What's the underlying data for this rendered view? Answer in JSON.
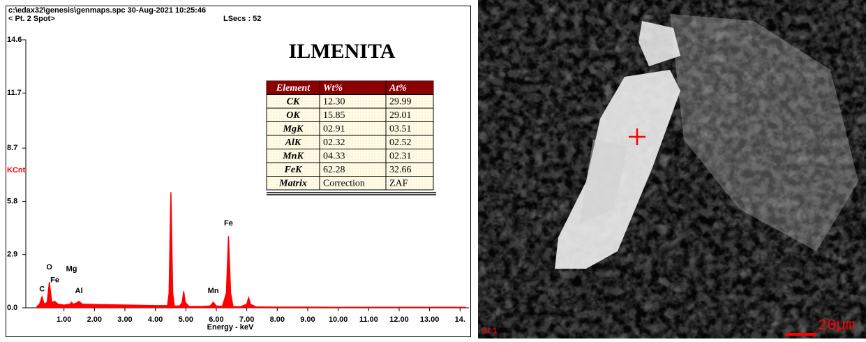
{
  "chart_data": {
    "type": "line",
    "header": [
      "c:\\edax32\\genesis\\genmaps.spc  30-Aug-2021 10:25:46",
      "< Pt. 2 Spot>",
      "LSecs : 52"
    ],
    "title": "ILMENITA",
    "ylabel": "KCnt",
    "xlabel": "Energy - keV",
    "color": "#ff0000",
    "xlim": [
      0,
      14.2
    ],
    "ylim": [
      0,
      14.6
    ],
    "xticks": [
      {
        "value": 1,
        "label": "1.00"
      },
      {
        "value": 2,
        "label": "2.00"
      },
      {
        "value": 3,
        "label": "3.00"
      },
      {
        "value": 4,
        "label": "4.00"
      },
      {
        "value": 5,
        "label": "5.00"
      },
      {
        "value": 6,
        "label": "6.00"
      },
      {
        "value": 7,
        "label": "7.00"
      },
      {
        "value": 8,
        "label": "8.00"
      },
      {
        "value": 9,
        "label": "9.00"
      },
      {
        "value": 10,
        "label": "10.00"
      },
      {
        "value": 11,
        "label": "11.00"
      },
      {
        "value": 12,
        "label": "12.00"
      },
      {
        "value": 13,
        "label": "13.00"
      },
      {
        "value": 14,
        "label": "14."
      }
    ],
    "yticks": [
      {
        "value": 0,
        "label": "0.0"
      },
      2.9,
      5.8,
      8.7,
      11.7,
      14.6
    ],
    "x": [
      0.1,
      0.2,
      0.28,
      0.35,
      0.45,
      0.52,
      0.6,
      0.7,
      0.8,
      1.0,
      1.2,
      1.25,
      1.3,
      1.4,
      1.49,
      1.6,
      2.0,
      3.0,
      4.0,
      4.4,
      4.45,
      4.51,
      4.57,
      4.62,
      4.8,
      4.88,
      4.93,
      4.98,
      5.1,
      5.5,
      5.8,
      5.9,
      6.0,
      6.2,
      6.33,
      6.4,
      6.47,
      6.55,
      6.8,
      7.0,
      7.06,
      7.12,
      7.3,
      8.0,
      9.0,
      10.0,
      11.0,
      12.0,
      13.0,
      14.0,
      14.2
    ],
    "values": [
      0.05,
      0.2,
      0.6,
      0.2,
      0.3,
      1.4,
      0.3,
      0.35,
      0.2,
      0.15,
      0.2,
      0.3,
      0.2,
      0.25,
      0.35,
      0.2,
      0.18,
      0.15,
      0.12,
      0.12,
      0.8,
      6.3,
      0.8,
      0.1,
      0.1,
      0.3,
      0.9,
      0.3,
      0.08,
      0.07,
      0.1,
      0.3,
      0.1,
      0.08,
      0.8,
      3.9,
      0.8,
      0.06,
      0.06,
      0.2,
      0.55,
      0.2,
      0.05,
      0.04,
      0.04,
      0.03,
      0.03,
      0.03,
      0.03,
      0.03,
      0.03
    ],
    "annotations": [
      {
        "text": "C",
        "x": 0.28,
        "y": 1.0
      },
      {
        "text": "O",
        "x": 0.52,
        "y": 2.2
      },
      {
        "text": "Fe",
        "x": 0.7,
        "y": 1.5
      },
      {
        "text": "Mg",
        "x": 1.25,
        "y": 2.1
      },
      {
        "text": "Al",
        "x": 1.49,
        "y": 0.9
      },
      {
        "text": "Mn",
        "x": 5.9,
        "y": 0.9
      },
      {
        "text": "Fe",
        "x": 6.4,
        "y": 4.6
      }
    ]
  },
  "table": {
    "header": [
      "Element",
      "Wt%",
      "At%"
    ],
    "rows": [
      [
        "CK",
        "12.30",
        "29.99"
      ],
      [
        "OK",
        "15.85",
        "29.01"
      ],
      [
        "MgK",
        "02.91",
        "03.51"
      ],
      [
        "AlK",
        "02.32",
        "02.52"
      ],
      [
        "MnK",
        "04.33",
        "02.31"
      ],
      [
        "FeK",
        "62.28",
        "32.66"
      ],
      [
        "Matrix",
        "Correction",
        "ZAF"
      ]
    ]
  },
  "image": {
    "label": "St1",
    "scale": "20µm"
  }
}
